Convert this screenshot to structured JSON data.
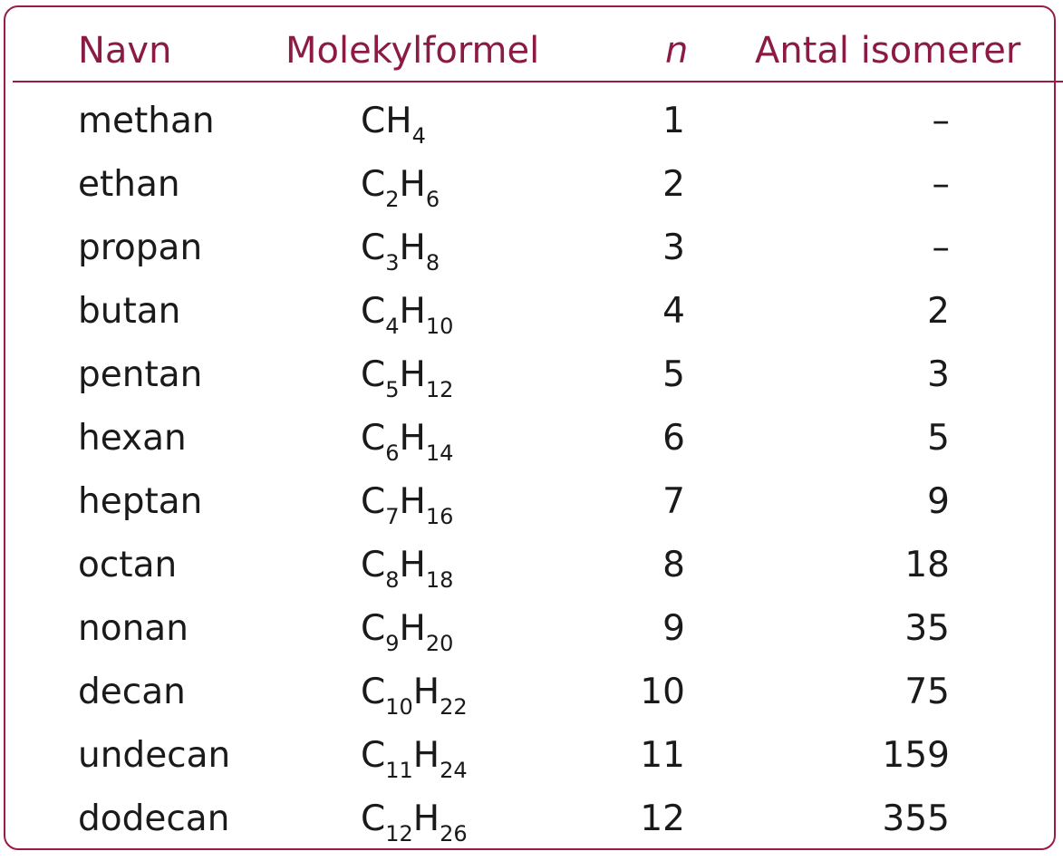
{
  "table": {
    "headers": {
      "name": "Navn",
      "formula": "Molekylformel",
      "n": "n",
      "isomers": "Antal isomerer"
    },
    "rows": [
      {
        "name": "methan",
        "formula": {
          "c": "",
          "h": "4"
        },
        "n": "1",
        "isomers": "–"
      },
      {
        "name": "ethan",
        "formula": {
          "c": "2",
          "h": "6"
        },
        "n": "2",
        "isomers": "–"
      },
      {
        "name": "propan",
        "formula": {
          "c": "3",
          "h": "8"
        },
        "n": "3",
        "isomers": "–"
      },
      {
        "name": "butan",
        "formula": {
          "c": "4",
          "h": "10"
        },
        "n": "4",
        "isomers": "2"
      },
      {
        "name": "pentan",
        "formula": {
          "c": "5",
          "h": "12"
        },
        "n": "5",
        "isomers": "3"
      },
      {
        "name": "hexan",
        "formula": {
          "c": "6",
          "h": "14"
        },
        "n": "6",
        "isomers": "5"
      },
      {
        "name": "heptan",
        "formula": {
          "c": "7",
          "h": "16"
        },
        "n": "7",
        "isomers": "9"
      },
      {
        "name": "octan",
        "formula": {
          "c": "8",
          "h": "18"
        },
        "n": "8",
        "isomers": "18"
      },
      {
        "name": "nonan",
        "formula": {
          "c": "9",
          "h": "20"
        },
        "n": "9",
        "isomers": "35"
      },
      {
        "name": "decan",
        "formula": {
          "c": "10",
          "h": "22"
        },
        "n": "10",
        "isomers": "75"
      },
      {
        "name": "undecan",
        "formula": {
          "c": "11",
          "h": "24"
        },
        "n": "11",
        "isomers": "159"
      },
      {
        "name": "dodecan",
        "formula": {
          "c": "12",
          "h": "26"
        },
        "n": "12",
        "isomers": "355"
      }
    ]
  }
}
